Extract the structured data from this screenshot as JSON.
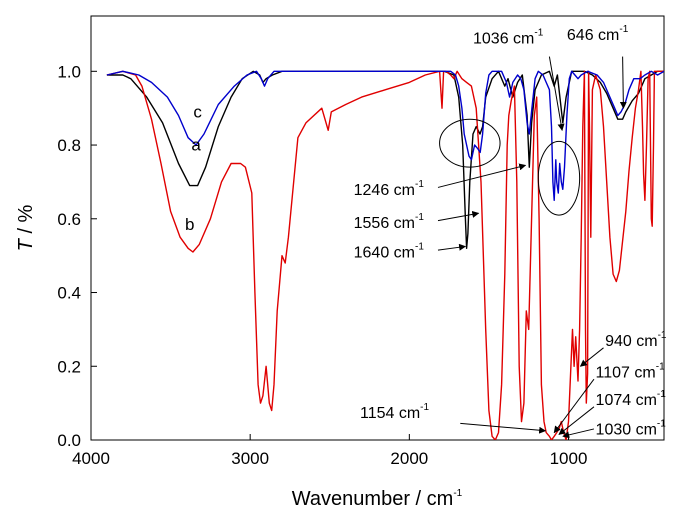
{
  "chart_data": {
    "type": "line",
    "xlabel": "Wavenumber / cm",
    "xlabel_sup": "-1",
    "ylabel_italic": "T",
    "ylabel_rest": " / %",
    "xlim": [
      4000,
      400
    ],
    "ylim": [
      0.0,
      1.15
    ],
    "x_ticks": [
      4000,
      3000,
      2000,
      1000
    ],
    "x_tick_labels": [
      "4000",
      "3000",
      "2000",
      "1000"
    ],
    "y_ticks": [
      0.0,
      0.2,
      0.4,
      0.6,
      0.8,
      1.0
    ],
    "y_tick_labels": [
      "0.0",
      "0.2",
      "0.4",
      "0.6",
      "0.8",
      "1.0"
    ],
    "grid": false,
    "series": [
      {
        "name": "a",
        "color": "#000000",
        "points": [
          [
            3900,
            0.99
          ],
          [
            3800,
            0.99
          ],
          [
            3750,
            0.98
          ],
          [
            3650,
            0.93
          ],
          [
            3550,
            0.86
          ],
          [
            3450,
            0.75
          ],
          [
            3380,
            0.69
          ],
          [
            3330,
            0.69
          ],
          [
            3280,
            0.74
          ],
          [
            3200,
            0.85
          ],
          [
            3120,
            0.93
          ],
          [
            3050,
            0.98
          ],
          [
            2980,
            1.0
          ],
          [
            2940,
            0.99
          ],
          [
            2920,
            0.97
          ],
          [
            2900,
            0.98
          ],
          [
            2860,
            0.99
          ],
          [
            2800,
            1.0
          ],
          [
            2400,
            1.0
          ],
          [
            2000,
            1.0
          ],
          [
            1780,
            1.0
          ],
          [
            1720,
            0.99
          ],
          [
            1690,
            0.93
          ],
          [
            1665,
            0.8
          ],
          [
            1648,
            0.6
          ],
          [
            1640,
            0.52
          ],
          [
            1632,
            0.56
          ],
          [
            1620,
            0.7
          ],
          [
            1600,
            0.83
          ],
          [
            1580,
            0.85
          ],
          [
            1556,
            0.83
          ],
          [
            1540,
            0.85
          ],
          [
            1520,
            0.93
          ],
          [
            1480,
            0.98
          ],
          [
            1440,
            1.0
          ],
          [
            1400,
            0.96
          ],
          [
            1380,
            0.98
          ],
          [
            1350,
            0.93
          ],
          [
            1320,
            0.97
          ],
          [
            1290,
            0.99
          ],
          [
            1260,
            0.88
          ],
          [
            1246,
            0.74
          ],
          [
            1232,
            0.86
          ],
          [
            1210,
            0.95
          ],
          [
            1170,
            0.99
          ],
          [
            1120,
            1.0
          ],
          [
            1090,
            0.96
          ],
          [
            1070,
            0.99
          ],
          [
            1036,
            0.86
          ],
          [
            1015,
            0.93
          ],
          [
            980,
            1.0
          ],
          [
            900,
            1.0
          ],
          [
            850,
            0.99
          ],
          [
            800,
            0.97
          ],
          [
            760,
            0.94
          ],
          [
            720,
            0.9
          ],
          [
            690,
            0.87
          ],
          [
            660,
            0.87
          ],
          [
            640,
            0.89
          ],
          [
            600,
            0.92
          ],
          [
            560,
            0.94
          ],
          [
            520,
            0.98
          ],
          [
            480,
            0.99
          ],
          [
            440,
            1.0
          ],
          [
            400,
            1.0
          ]
        ]
      },
      {
        "name": "b",
        "color": "#e00000",
        "points": [
          [
            3900,
            0.99
          ],
          [
            3800,
            1.0
          ],
          [
            3720,
            0.99
          ],
          [
            3680,
            0.96
          ],
          [
            3620,
            0.87
          ],
          [
            3560,
            0.75
          ],
          [
            3500,
            0.62
          ],
          [
            3440,
            0.55
          ],
          [
            3390,
            0.52
          ],
          [
            3360,
            0.51
          ],
          [
            3320,
            0.53
          ],
          [
            3250,
            0.6
          ],
          [
            3180,
            0.7
          ],
          [
            3120,
            0.75
          ],
          [
            3060,
            0.75
          ],
          [
            3030,
            0.74
          ],
          [
            2990,
            0.67
          ],
          [
            2970,
            0.4
          ],
          [
            2950,
            0.15
          ],
          [
            2935,
            0.1
          ],
          [
            2920,
            0.12
          ],
          [
            2900,
            0.2
          ],
          [
            2880,
            0.1
          ],
          [
            2865,
            0.08
          ],
          [
            2850,
            0.15
          ],
          [
            2830,
            0.35
          ],
          [
            2800,
            0.5
          ],
          [
            2780,
            0.48
          ],
          [
            2760,
            0.55
          ],
          [
            2700,
            0.82
          ],
          [
            2650,
            0.86
          ],
          [
            2550,
            0.9
          ],
          [
            2510,
            0.84
          ],
          [
            2490,
            0.89
          ],
          [
            2400,
            0.91
          ],
          [
            2300,
            0.93
          ],
          [
            2150,
            0.95
          ],
          [
            2000,
            0.97
          ],
          [
            1900,
            0.99
          ],
          [
            1810,
            1.0
          ],
          [
            1795,
            0.9
          ],
          [
            1785,
            1.0
          ],
          [
            1770,
            1.0
          ],
          [
            1740,
            0.99
          ],
          [
            1720,
            0.98
          ],
          [
            1700,
            1.0
          ],
          [
            1670,
            0.98
          ],
          [
            1640,
            0.97
          ],
          [
            1610,
            0.96
          ],
          [
            1580,
            0.9
          ],
          [
            1550,
            0.7
          ],
          [
            1520,
            0.3
          ],
          [
            1500,
            0.08
          ],
          [
            1480,
            0.01
          ],
          [
            1460,
            0.0
          ],
          [
            1440,
            0.02
          ],
          [
            1420,
            0.15
          ],
          [
            1400,
            0.45
          ],
          [
            1385,
            0.8
          ],
          [
            1375,
            0.88
          ],
          [
            1360,
            0.92
          ],
          [
            1340,
            0.96
          ],
          [
            1325,
            0.7
          ],
          [
            1310,
            0.2
          ],
          [
            1295,
            0.05
          ],
          [
            1280,
            0.1
          ],
          [
            1265,
            0.35
          ],
          [
            1250,
            0.3
          ],
          [
            1235,
            0.55
          ],
          [
            1215,
            0.88
          ],
          [
            1200,
            0.93
          ],
          [
            1185,
            0.6
          ],
          [
            1170,
            0.15
          ],
          [
            1154,
            0.05
          ],
          [
            1140,
            0.02
          ],
          [
            1120,
            0.01
          ],
          [
            1107,
            0.0
          ],
          [
            1090,
            0.01
          ],
          [
            1074,
            0.02
          ],
          [
            1060,
            0.03
          ],
          [
            1045,
            0.05
          ],
          [
            1030,
            0.02
          ],
          [
            1015,
            0.0
          ],
          [
            1000,
            0.05
          ],
          [
            985,
            0.2
          ],
          [
            975,
            0.3
          ],
          [
            965,
            0.2
          ],
          [
            955,
            0.28
          ],
          [
            940,
            0.16
          ],
          [
            930,
            0.3
          ],
          [
            920,
            0.55
          ],
          [
            910,
            0.85
          ],
          [
            900,
            1.0
          ],
          [
            893,
            0.3
          ],
          [
            888,
            0.1
          ],
          [
            880,
            0.18
          ],
          [
            874,
            1.0
          ],
          [
            868,
            0.85
          ],
          [
            860,
            0.55
          ],
          [
            850,
            0.95
          ],
          [
            830,
            0.99
          ],
          [
            800,
            0.95
          ],
          [
            780,
            0.85
          ],
          [
            760,
            0.7
          ],
          [
            740,
            0.55
          ],
          [
            720,
            0.45
          ],
          [
            700,
            0.43
          ],
          [
            680,
            0.46
          ],
          [
            660,
            0.54
          ],
          [
            640,
            0.62
          ],
          [
            620,
            0.73
          ],
          [
            600,
            0.82
          ],
          [
            580,
            0.9
          ],
          [
            560,
            0.95
          ],
          [
            545,
            1.0
          ],
          [
            535,
            0.85
          ],
          [
            528,
            0.72
          ],
          [
            520,
            0.65
          ],
          [
            510,
            0.8
          ],
          [
            500,
            0.98
          ],
          [
            490,
            1.0
          ],
          [
            480,
            0.6
          ],
          [
            474,
            0.58
          ],
          [
            466,
            0.8
          ],
          [
            460,
            1.0
          ],
          [
            400,
            1.0
          ]
        ]
      },
      {
        "name": "c",
        "color": "#0000cc",
        "points": [
          [
            3900,
            0.99
          ],
          [
            3800,
            1.0
          ],
          [
            3700,
            0.99
          ],
          [
            3620,
            0.97
          ],
          [
            3520,
            0.93
          ],
          [
            3450,
            0.88
          ],
          [
            3390,
            0.82
          ],
          [
            3340,
            0.8
          ],
          [
            3290,
            0.83
          ],
          [
            3200,
            0.91
          ],
          [
            3100,
            0.96
          ],
          [
            3020,
            0.99
          ],
          [
            2960,
            1.0
          ],
          [
            2930,
            0.98
          ],
          [
            2910,
            0.96
          ],
          [
            2890,
            0.98
          ],
          [
            2850,
            1.0
          ],
          [
            2400,
            1.0
          ],
          [
            2000,
            1.0
          ],
          [
            1740,
            1.0
          ],
          [
            1710,
            0.99
          ],
          [
            1690,
            0.96
          ],
          [
            1670,
            0.9
          ],
          [
            1655,
            0.83
          ],
          [
            1640,
            0.8
          ],
          [
            1625,
            0.77
          ],
          [
            1610,
            0.76
          ],
          [
            1590,
            0.8
          ],
          [
            1570,
            0.79
          ],
          [
            1555,
            0.78
          ],
          [
            1540,
            0.83
          ],
          [
            1520,
            0.94
          ],
          [
            1500,
            0.99
          ],
          [
            1480,
            1.0
          ],
          [
            1420,
            1.0
          ],
          [
            1390,
            0.97
          ],
          [
            1370,
            0.93
          ],
          [
            1350,
            0.97
          ],
          [
            1320,
            0.99
          ],
          [
            1300,
            0.98
          ],
          [
            1280,
            0.95
          ],
          [
            1260,
            0.86
          ],
          [
            1246,
            0.83
          ],
          [
            1230,
            0.9
          ],
          [
            1210,
            0.98
          ],
          [
            1190,
            1.0
          ],
          [
            1160,
            0.99
          ],
          [
            1140,
            0.97
          ],
          [
            1120,
            0.95
          ],
          [
            1107,
            0.85
          ],
          [
            1098,
            0.7
          ],
          [
            1090,
            0.65
          ],
          [
            1080,
            0.76
          ],
          [
            1074,
            0.7
          ],
          [
            1064,
            0.67
          ],
          [
            1055,
            0.75
          ],
          [
            1045,
            0.7
          ],
          [
            1036,
            0.68
          ],
          [
            1025,
            0.74
          ],
          [
            1010,
            0.88
          ],
          [
            995,
            0.98
          ],
          [
            980,
            1.0
          ],
          [
            960,
            0.99
          ],
          [
            940,
            0.98
          ],
          [
            920,
            0.99
          ],
          [
            880,
            1.0
          ],
          [
            820,
            0.99
          ],
          [
            780,
            0.97
          ],
          [
            740,
            0.93
          ],
          [
            710,
            0.9
          ],
          [
            690,
            0.88
          ],
          [
            670,
            0.89
          ],
          [
            646,
            0.91
          ],
          [
            620,
            0.95
          ],
          [
            590,
            0.98
          ],
          [
            550,
            0.98
          ],
          [
            520,
            0.99
          ],
          [
            480,
            1.0
          ],
          [
            440,
            0.99
          ],
          [
            400,
            1.0
          ]
        ]
      }
    ],
    "curve_labels": [
      {
        "text": "a",
        "x": 3340,
        "y": 0.785
      },
      {
        "text": "b",
        "x": 3380,
        "y": 0.57
      },
      {
        "text": "c",
        "x": 3330,
        "y": 0.875
      }
    ],
    "annotations": [
      {
        "id": "ann-1036",
        "label": "1036 cm",
        "sup": "-1",
        "tx": 1600,
        "ty": 1.075,
        "ax": 1120,
        "ay": 1.04,
        "hx": 1040,
        "hy": 0.84
      },
      {
        "id": "ann-646",
        "label": "646 cm",
        "sup": "-1",
        "tx": 1010,
        "ty": 1.085,
        "ax": 660,
        "ay": 1.04,
        "hx": 655,
        "hy": 0.9
      },
      {
        "id": "ann-1246",
        "label": "1246 cm",
        "sup": "-1",
        "tx": 2350,
        "ty": 0.665,
        "ax": 1820,
        "ay": 0.685,
        "hx": 1270,
        "hy": 0.745
      },
      {
        "id": "ann-1556",
        "label": "1556 cm",
        "sup": "-1",
        "tx": 2350,
        "ty": 0.575,
        "ax": 1820,
        "ay": 0.595,
        "hx": 1565,
        "hy": 0.615
      },
      {
        "id": "ann-1640",
        "label": "1640 cm",
        "sup": "-1",
        "tx": 2350,
        "ty": 0.495,
        "ax": 1820,
        "ay": 0.515,
        "hx": 1648,
        "hy": 0.525
      },
      {
        "id": "ann-940",
        "label": "940 cm",
        "sup": "-1",
        "tx": 770,
        "ty": 0.255,
        "ax": 780,
        "ay": 0.25,
        "hx": 925,
        "hy": 0.2
      },
      {
        "id": "ann-1107",
        "label": "1107 cm",
        "sup": "-1",
        "tx": 830,
        "ty": 0.17,
        "ax": 840,
        "ay": 0.165,
        "hx": 1090,
        "hy": 0.02
      },
      {
        "id": "ann-1074",
        "label": "1074 cm",
        "sup": "-1",
        "tx": 830,
        "ty": 0.095,
        "ax": 840,
        "ay": 0.09,
        "hx": 1060,
        "hy": 0.015
      },
      {
        "id": "ann-1030",
        "label": "1030 cm",
        "sup": "-1",
        "tx": 830,
        "ty": 0.015,
        "ax": 840,
        "ay": 0.03,
        "hx": 1035,
        "hy": 0.01
      },
      {
        "id": "ann-1154",
        "label": "1154 cm",
        "sup": "-1",
        "tx": 2310,
        "ty": 0.06,
        "ax": 1680,
        "ay": 0.045,
        "hx": 1145,
        "hy": 0.025
      }
    ],
    "ellipses": [
      {
        "id": "ellipse-amide",
        "cx": 1620,
        "cy": 0.805,
        "rx": 190,
        "ry": 0.065
      },
      {
        "id": "ellipse-1036",
        "cx": 1060,
        "cy": 0.71,
        "rx": 130,
        "ry": 0.1
      }
    ]
  }
}
